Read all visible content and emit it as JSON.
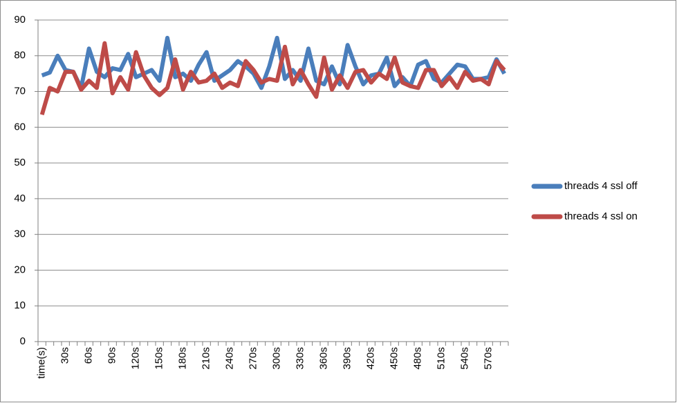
{
  "chart_data": {
    "type": "line",
    "categories": [
      "time(s)",
      null,
      null,
      "30s",
      null,
      null,
      "60s",
      null,
      null,
      "90s",
      null,
      null,
      "120s",
      null,
      null,
      "150s",
      null,
      null,
      "180s",
      null,
      null,
      "210s",
      null,
      null,
      "240s",
      null,
      null,
      "270s",
      null,
      null,
      "300s",
      null,
      null,
      "330s",
      null,
      null,
      "360s",
      null,
      null,
      "390s",
      null,
      null,
      "420s",
      null,
      null,
      "450s",
      null,
      null,
      "480s",
      null,
      null,
      "510s",
      null,
      null,
      "540s",
      null,
      null,
      "570s",
      null,
      null
    ],
    "series": [
      {
        "name": "threads 4 ssl off",
        "color": "#4a7ebb",
        "values": [
          74.5,
          75.3,
          80,
          76,
          75.5,
          71,
          82,
          75.5,
          74,
          76.5,
          76,
          80.5,
          74,
          75,
          76,
          73,
          85,
          74,
          75,
          73,
          77.5,
          81,
          73,
          74.5,
          76,
          78.5,
          77,
          75,
          71,
          77,
          85,
          73.5,
          76,
          73,
          82,
          73,
          72,
          77,
          72,
          83,
          77,
          72,
          74.5,
          75,
          79.5,
          71.5,
          74,
          71.5,
          77.5,
          78.5,
          73.5,
          72.5,
          75,
          77.5,
          77,
          73.5,
          73.5,
          74,
          79,
          75
        ]
      },
      {
        "name": "threads 4 ssl on",
        "color": "#be4b48",
        "values": [
          63.5,
          71,
          70,
          75.5,
          75.5,
          70.5,
          73,
          71,
          83.5,
          69.5,
          74,
          70.5,
          81,
          74.5,
          71,
          69,
          71,
          79,
          70.5,
          75.5,
          72.5,
          73,
          75,
          71,
          72.5,
          71.5,
          78.5,
          76,
          72.5,
          73.5,
          73,
          82.5,
          72,
          76,
          72,
          68.5,
          79.5,
          70.5,
          74.5,
          71,
          75.5,
          76,
          72.5,
          75,
          73.5,
          79.5,
          72.5,
          71.5,
          71,
          76,
          76,
          71.5,
          74,
          71,
          75.5,
          73,
          73.5,
          72,
          78.5,
          76
        ]
      }
    ],
    "ylim": [
      0,
      90
    ],
    "yticks": [
      0,
      10,
      20,
      30,
      40,
      50,
      60,
      70,
      80,
      90
    ],
    "grid": true,
    "legend": "right"
  }
}
